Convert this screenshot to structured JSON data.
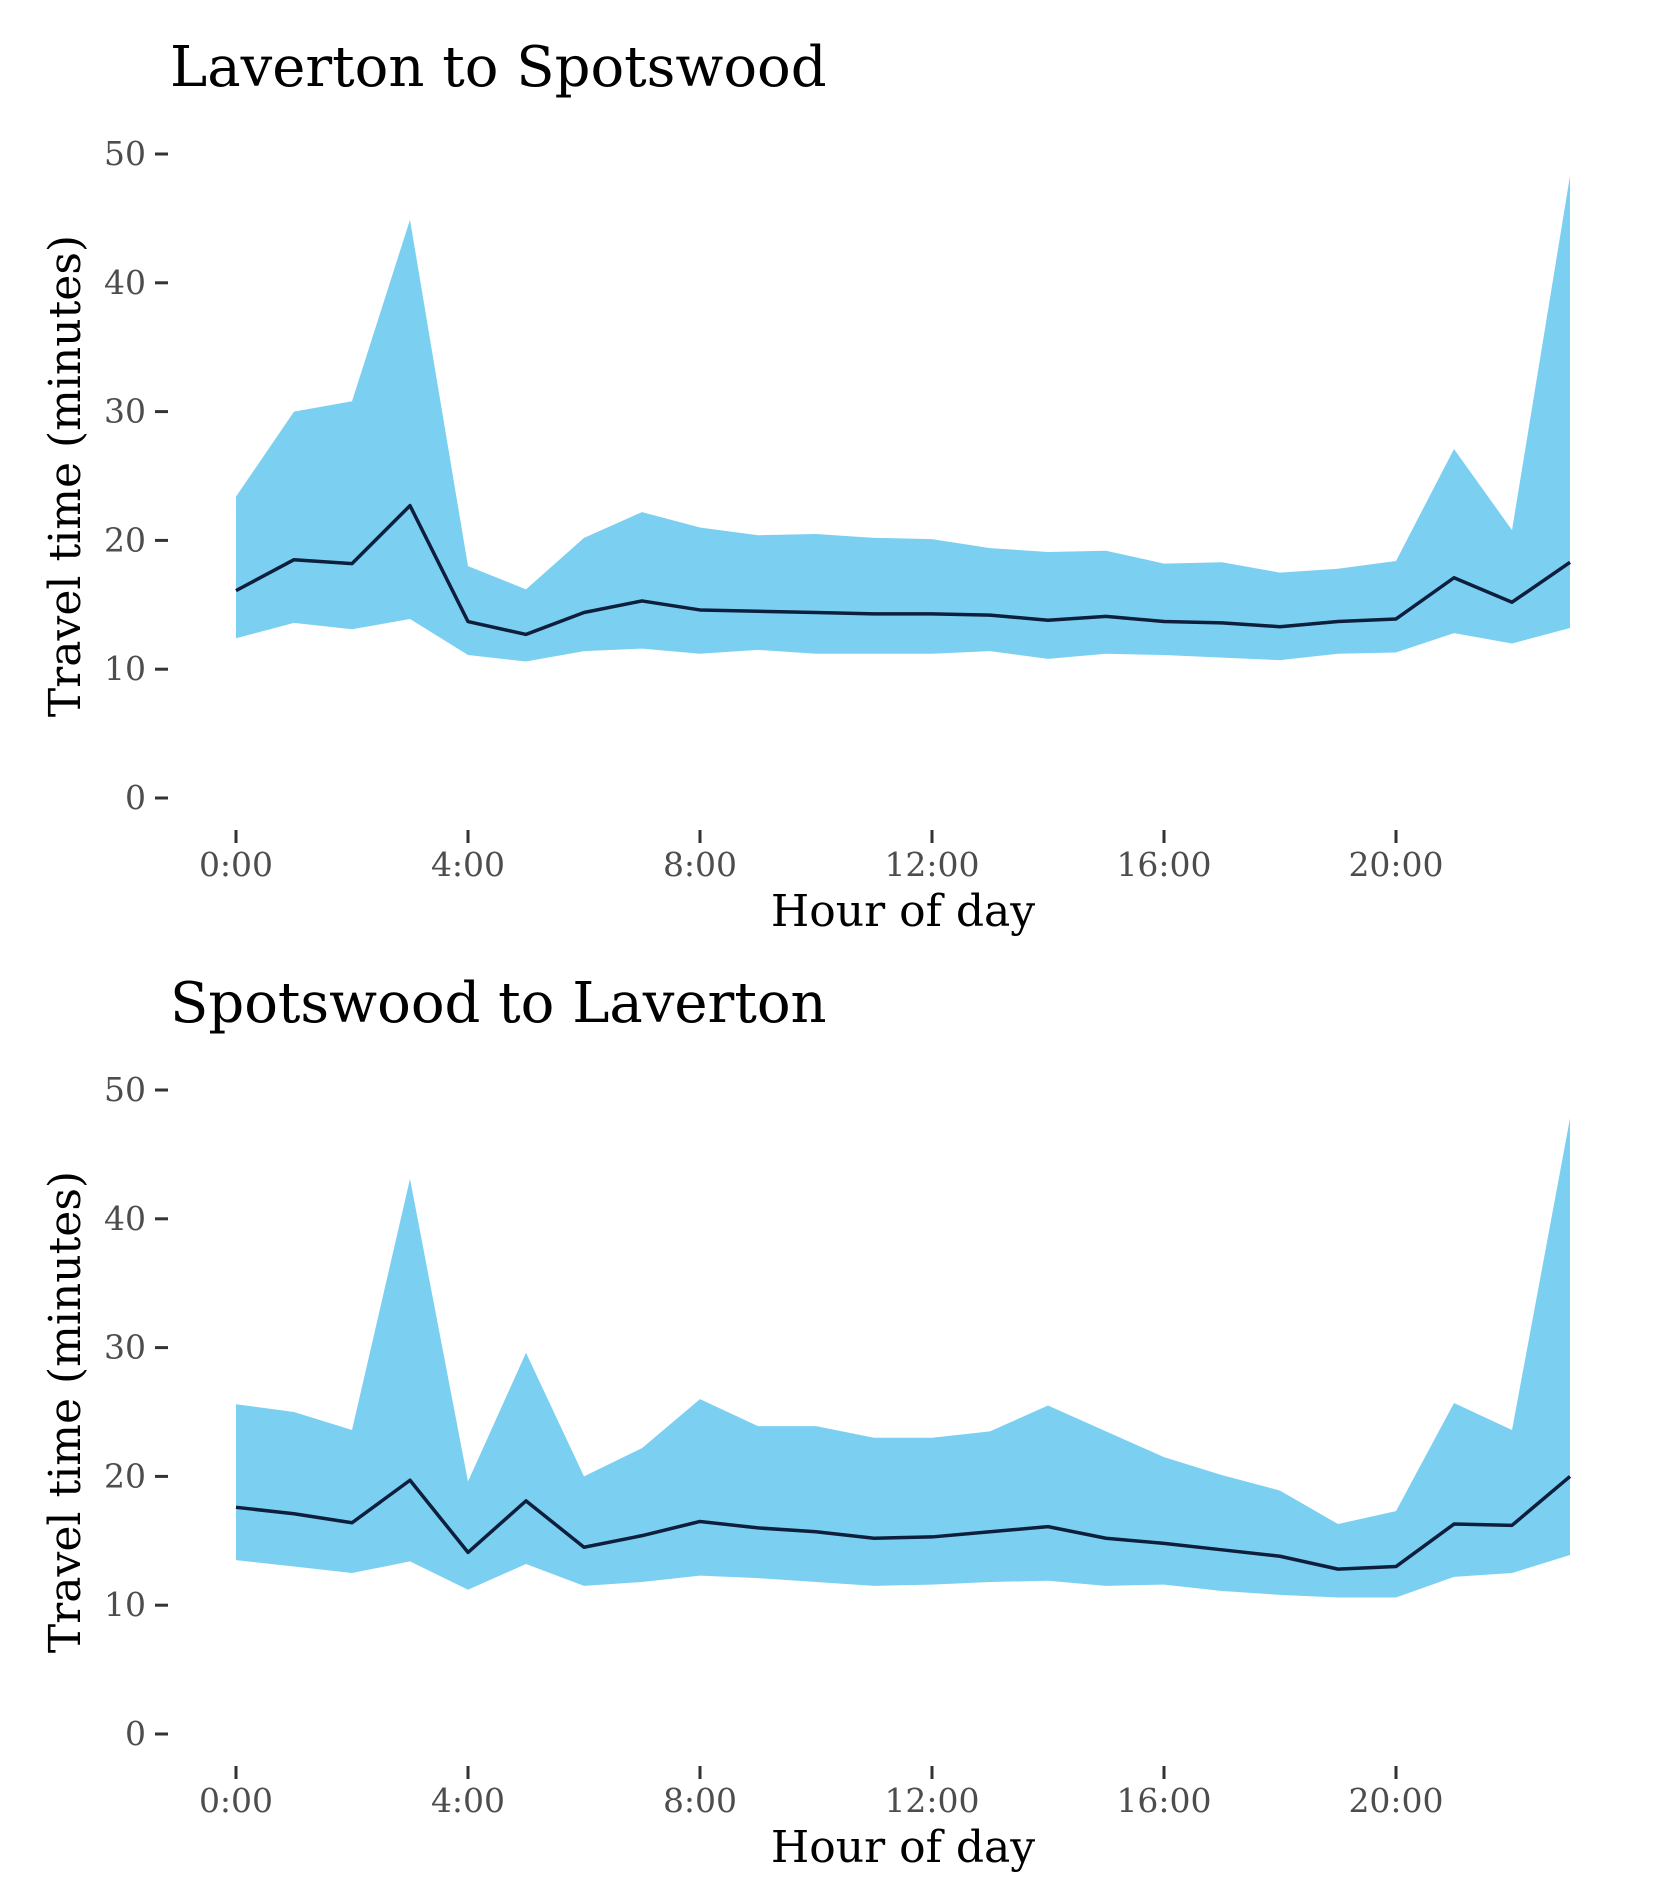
{
  "colors": {
    "band": "#7bd0f2",
    "line": "#0e1f3d",
    "tick_text": "#4d4d4d",
    "tick_mark": "#333333"
  },
  "chart_data": [
    {
      "type": "area",
      "title": "Laverton to Spotswood",
      "xlabel": "Hour of day",
      "ylabel": "Travel time (minutes)",
      "xlim": [
        0,
        23
      ],
      "ylim": [
        0,
        50
      ],
      "xticks": [
        0,
        4,
        8,
        12,
        16,
        20
      ],
      "xtick_labels": [
        "0:00",
        "4:00",
        "8:00",
        "12:00",
        "16:00",
        "20:00"
      ],
      "yticks": [
        0,
        10,
        20,
        30,
        40,
        50
      ],
      "ytick_labels": [
        "0",
        "10",
        "20",
        "30",
        "40",
        "50"
      ],
      "grid": false,
      "x": [
        0,
        1,
        2,
        3,
        4,
        5,
        6,
        7,
        8,
        9,
        10,
        11,
        12,
        13,
        14,
        15,
        16,
        17,
        18,
        19,
        20,
        21,
        22,
        23
      ],
      "series": [
        {
          "role": "lower",
          "values": [
            12.4,
            13.6,
            13.1,
            13.9,
            11.1,
            10.6,
            11.4,
            11.6,
            11.2,
            11.5,
            11.2,
            11.2,
            11.2,
            11.4,
            10.8,
            11.2,
            11.1,
            10.9,
            10.7,
            11.2,
            11.3,
            12.8,
            12.0,
            13.2
          ]
        },
        {
          "role": "median",
          "values": [
            16.1,
            18.5,
            18.2,
            22.7,
            13.7,
            12.7,
            14.4,
            15.3,
            14.6,
            14.5,
            14.4,
            14.3,
            14.3,
            14.2,
            13.8,
            14.1,
            13.7,
            13.6,
            13.3,
            13.7,
            13.9,
            17.1,
            15.2,
            18.3
          ]
        },
        {
          "role": "upper",
          "values": [
            23.4,
            30.0,
            30.8,
            44.9,
            18.0,
            16.2,
            20.2,
            22.2,
            21.0,
            20.4,
            20.5,
            20.2,
            20.1,
            19.4,
            19.1,
            19.2,
            18.2,
            18.3,
            17.5,
            17.8,
            18.4,
            27.1,
            20.8,
            48.3
          ]
        }
      ]
    },
    {
      "type": "area",
      "title": "Spotswood to Laverton",
      "xlabel": "Hour of day",
      "ylabel": "Travel time (minutes)",
      "xlim": [
        0,
        23
      ],
      "ylim": [
        0,
        50
      ],
      "xticks": [
        0,
        4,
        8,
        12,
        16,
        20
      ],
      "xtick_labels": [
        "0:00",
        "4:00",
        "8:00",
        "12:00",
        "16:00",
        "20:00"
      ],
      "yticks": [
        0,
        10,
        20,
        30,
        40,
        50
      ],
      "ytick_labels": [
        "0",
        "10",
        "20",
        "30",
        "40",
        "50"
      ],
      "grid": false,
      "x": [
        0,
        1,
        2,
        3,
        4,
        5,
        6,
        7,
        8,
        9,
        10,
        11,
        12,
        13,
        14,
        15,
        16,
        17,
        18,
        19,
        20,
        21,
        22,
        23
      ],
      "series": [
        {
          "role": "lower",
          "values": [
            13.5,
            13.0,
            12.5,
            13.4,
            11.2,
            13.2,
            11.5,
            11.8,
            12.3,
            12.1,
            11.8,
            11.5,
            11.6,
            11.8,
            11.9,
            11.5,
            11.6,
            11.1,
            10.8,
            10.6,
            10.6,
            12.2,
            12.5,
            13.9
          ]
        },
        {
          "role": "median",
          "values": [
            17.6,
            17.1,
            16.4,
            19.7,
            14.1,
            18.1,
            14.5,
            15.4,
            16.5,
            16.0,
            15.7,
            15.2,
            15.3,
            15.7,
            16.1,
            15.2,
            14.8,
            14.3,
            13.8,
            12.8,
            13.0,
            16.3,
            16.2,
            20.0
          ]
        },
        {
          "role": "upper",
          "values": [
            25.6,
            25.0,
            23.6,
            43.1,
            19.6,
            29.6,
            20.0,
            22.2,
            26.0,
            23.9,
            23.9,
            23.0,
            23.0,
            23.5,
            25.5,
            23.5,
            21.5,
            20.1,
            18.9,
            16.3,
            17.3,
            25.7,
            23.6,
            47.8
          ]
        }
      ]
    }
  ]
}
